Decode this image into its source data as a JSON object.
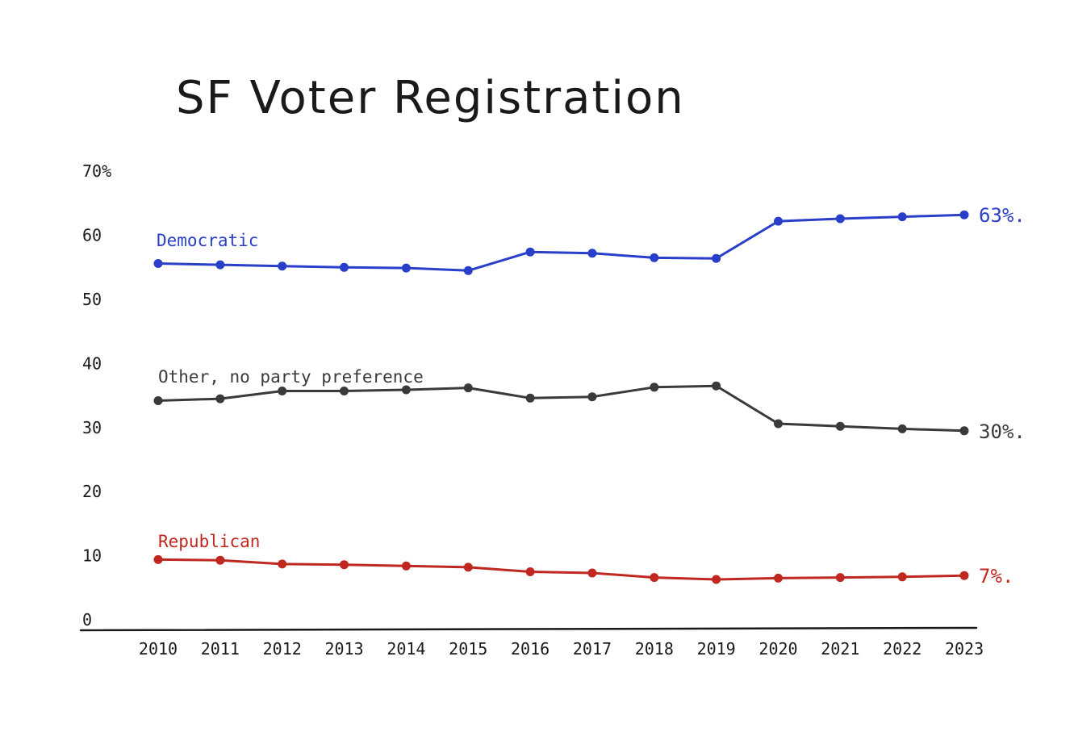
{
  "chart_data": {
    "type": "line",
    "title": "SF Voter Registration",
    "xlabel": "",
    "ylabel": "",
    "ylim": [
      0,
      70
    ],
    "y_ticks": [
      "0",
      "10",
      "20",
      "30",
      "40",
      "50",
      "60",
      "70%"
    ],
    "categories": [
      "2010",
      "2011",
      "2012",
      "2013",
      "2014",
      "2015",
      "2016",
      "2017",
      "2018",
      "2019",
      "2020",
      "2021",
      "2022",
      "2023"
    ],
    "series": [
      {
        "name": "Democratic",
        "color": "#2a3fc9",
        "values": [
          55.6,
          55.4,
          55.2,
          55.0,
          54.9,
          54.5,
          57.4,
          57.2,
          56.5,
          56.4,
          62.2,
          62.6,
          62.9,
          63.2
        ],
        "end_label": "63%."
      },
      {
        "name": "Other, no party preference",
        "color": "#3a3a3a",
        "values": [
          34.2,
          34.5,
          35.7,
          35.7,
          35.9,
          36.2,
          34.6,
          34.8,
          36.3,
          36.5,
          30.6,
          30.2,
          29.8,
          29.5
        ],
        "end_label": "30%."
      },
      {
        "name": "Republican",
        "color": "#c0281f",
        "values": [
          9.4,
          9.3,
          8.7,
          8.6,
          8.4,
          8.2,
          7.5,
          7.3,
          6.6,
          6.3,
          6.5,
          6.6,
          6.7,
          6.9
        ],
        "end_label": "7%."
      }
    ]
  }
}
